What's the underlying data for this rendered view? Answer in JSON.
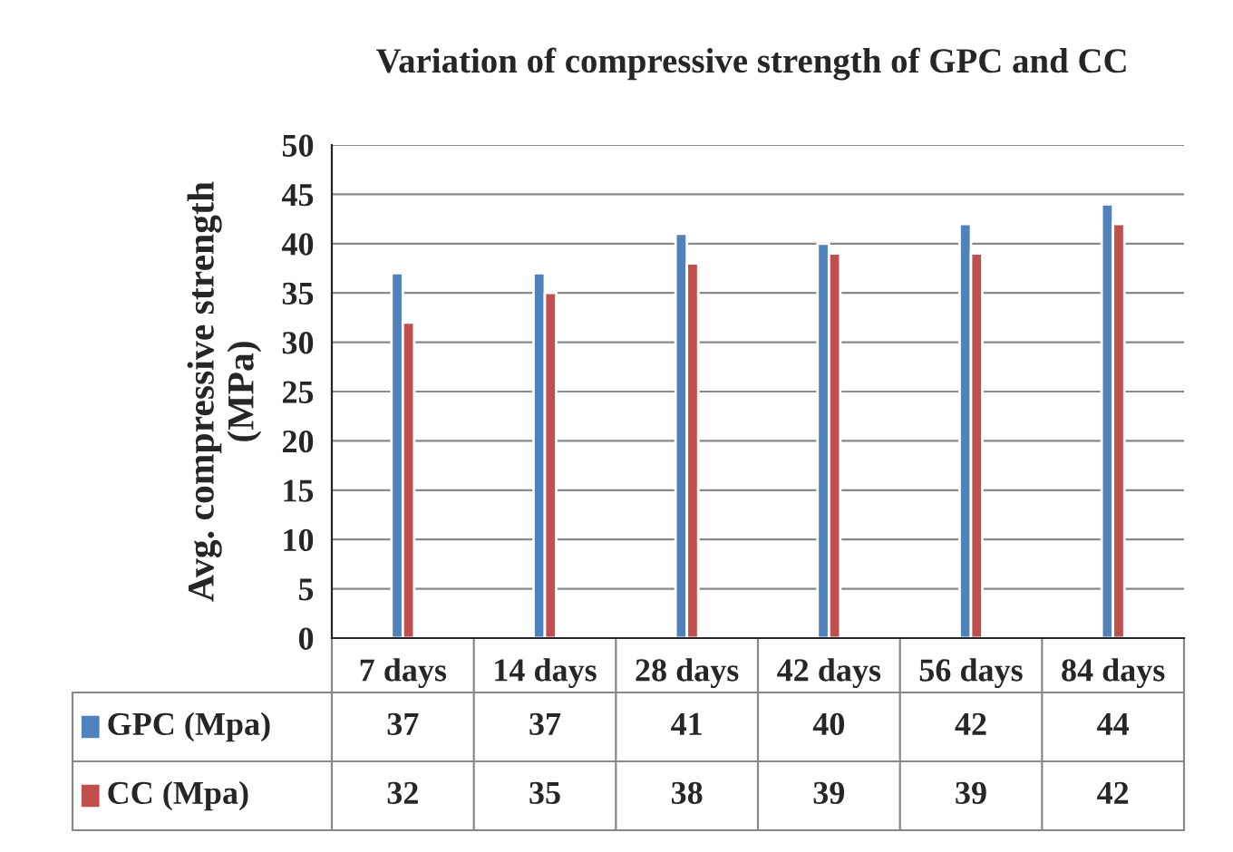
{
  "chart_data": {
    "type": "bar",
    "title": "Variation of compressive strength of GPC and CC",
    "ylabel": "Avg. compressive strength\n(MPa)",
    "categories": [
      "7 days",
      "14 days",
      "28 days",
      "42 days",
      "56 days",
      "84 days"
    ],
    "series": [
      {
        "name": "GPC (Mpa)",
        "color": "#4f81bd",
        "values": [
          37,
          37,
          41,
          40,
          42,
          44
        ]
      },
      {
        "name": "CC (Mpa)",
        "color": "#c0504d",
        "values": [
          32,
          35,
          38,
          39,
          39,
          42
        ]
      }
    ],
    "ylim": [
      0,
      50
    ],
    "yticks": [
      0,
      5,
      10,
      15,
      20,
      25,
      30,
      35,
      40,
      45,
      50
    ],
    "grid": "y",
    "data_labels": true,
    "legend": "bottom left"
  }
}
